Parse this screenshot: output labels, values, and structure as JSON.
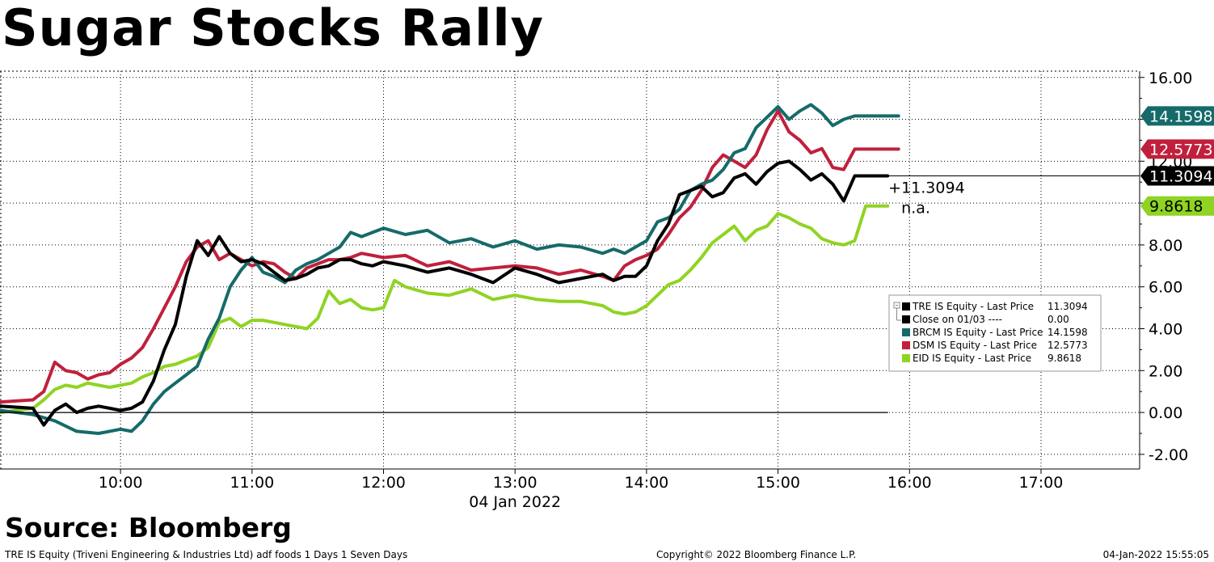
{
  "header": {
    "title": "Sugar Stocks Rally"
  },
  "source": {
    "label": "Source:  Bloomberg"
  },
  "footer": {
    "left": "TRE IS Equity (Triveni Engineering & Industries Ltd) adf foods 1 Days 1 Seven Days",
    "center": "Copyright© 2022 Bloomberg Finance L.P.",
    "right": "04-Jan-2022 15:55:05"
  },
  "chart_data": {
    "type": "line",
    "x_ticks": [
      "10:00",
      "11:00",
      "12:00",
      "13:00",
      "14:00",
      "15:00",
      "16:00",
      "17:00"
    ],
    "x_date_label": "04 Jan 2022",
    "xlim": [
      "09:05",
      "17:45"
    ],
    "y_ticks": [
      "16.00",
      "14.00",
      "12.00",
      "10.00",
      "8.00",
      "6.00",
      "4.00",
      "2.00",
      "0.00",
      "-2.00"
    ],
    "ylim": [
      -2.7,
      16.3
    ],
    "grid": true,
    "axis_side": "right",
    "legend_position": "right-middle",
    "series": [
      {
        "name": "TRE IS Equity - Last Price",
        "legend_value": "11.3094",
        "color": "#000000",
        "tag": "11.3094",
        "points": [
          [
            "09:05",
            0.3
          ],
          [
            "09:20",
            0.2
          ],
          [
            "09:25",
            -0.6
          ],
          [
            "09:30",
            0.1
          ],
          [
            "09:35",
            0.4
          ],
          [
            "09:40",
            0.0
          ],
          [
            "09:45",
            0.2
          ],
          [
            "09:50",
            0.3
          ],
          [
            "09:55",
            0.2
          ],
          [
            "10:00",
            0.1
          ],
          [
            "10:05",
            0.2
          ],
          [
            "10:10",
            0.5
          ],
          [
            "10:15",
            1.5
          ],
          [
            "10:20",
            3.0
          ],
          [
            "10:25",
            4.2
          ],
          [
            "10:30",
            6.5
          ],
          [
            "10:35",
            8.2
          ],
          [
            "10:40",
            7.5
          ],
          [
            "10:45",
            8.4
          ],
          [
            "10:50",
            7.6
          ],
          [
            "10:55",
            7.2
          ],
          [
            "11:00",
            7.3
          ],
          [
            "11:05",
            7.1
          ],
          [
            "11:10",
            6.7
          ],
          [
            "11:15",
            6.3
          ],
          [
            "11:20",
            6.4
          ],
          [
            "11:25",
            6.6
          ],
          [
            "11:30",
            6.9
          ],
          [
            "11:35",
            7.0
          ],
          [
            "11:40",
            7.3
          ],
          [
            "11:45",
            7.3
          ],
          [
            "11:50",
            7.1
          ],
          [
            "11:55",
            7.0
          ],
          [
            "12:00",
            7.2
          ],
          [
            "12:10",
            7.0
          ],
          [
            "12:20",
            6.7
          ],
          [
            "12:30",
            6.9
          ],
          [
            "12:40",
            6.6
          ],
          [
            "12:50",
            6.2
          ],
          [
            "13:00",
            6.9
          ],
          [
            "13:10",
            6.6
          ],
          [
            "13:20",
            6.2
          ],
          [
            "13:30",
            6.4
          ],
          [
            "13:40",
            6.6
          ],
          [
            "13:45",
            6.3
          ],
          [
            "13:50",
            6.5
          ],
          [
            "13:55",
            6.5
          ],
          [
            "14:00",
            7.0
          ],
          [
            "14:05",
            8.2
          ],
          [
            "14:10",
            9.0
          ],
          [
            "14:15",
            10.4
          ],
          [
            "14:20",
            10.6
          ],
          [
            "14:25",
            10.8
          ],
          [
            "14:30",
            10.3
          ],
          [
            "14:35",
            10.5
          ],
          [
            "14:40",
            11.2
          ],
          [
            "14:45",
            11.4
          ],
          [
            "14:50",
            10.9
          ],
          [
            "14:55",
            11.5
          ],
          [
            "15:00",
            11.9
          ],
          [
            "15:05",
            12.0
          ],
          [
            "15:10",
            11.6
          ],
          [
            "15:15",
            11.1
          ],
          [
            "15:20",
            11.4
          ],
          [
            "15:25",
            10.9
          ],
          [
            "15:30",
            10.1
          ],
          [
            "15:35",
            11.3
          ],
          [
            "15:50",
            11.3
          ]
        ]
      },
      {
        "name": "Close on 01/03 ----",
        "legend_value": "0.00",
        "color": "#000000",
        "points": [
          [
            "09:05",
            0.0
          ],
          [
            "15:50",
            0.0
          ]
        ]
      },
      {
        "name": "BRCM IS Equity - Last Price",
        "legend_value": "14.1598",
        "color": "#166a6a",
        "tag": "14.1598",
        "points": [
          [
            "09:05",
            0.1
          ],
          [
            "09:20",
            -0.1
          ],
          [
            "09:30",
            -0.4
          ],
          [
            "09:40",
            -0.9
          ],
          [
            "09:50",
            -1.0
          ],
          [
            "10:00",
            -0.8
          ],
          [
            "10:05",
            -0.9
          ],
          [
            "10:10",
            -0.4
          ],
          [
            "10:15",
            0.4
          ],
          [
            "10:20",
            1.0
          ],
          [
            "10:25",
            1.4
          ],
          [
            "10:30",
            1.8
          ],
          [
            "10:35",
            2.2
          ],
          [
            "10:40",
            3.5
          ],
          [
            "10:45",
            4.5
          ],
          [
            "10:50",
            6.0
          ],
          [
            "10:55",
            6.8
          ],
          [
            "11:00",
            7.4
          ],
          [
            "11:05",
            6.7
          ],
          [
            "11:10",
            6.5
          ],
          [
            "11:15",
            6.2
          ],
          [
            "11:20",
            6.8
          ],
          [
            "11:25",
            7.1
          ],
          [
            "11:30",
            7.3
          ],
          [
            "11:35",
            7.6
          ],
          [
            "11:40",
            7.9
          ],
          [
            "11:45",
            8.6
          ],
          [
            "11:50",
            8.4
          ],
          [
            "11:55",
            8.6
          ],
          [
            "12:00",
            8.8
          ],
          [
            "12:10",
            8.5
          ],
          [
            "12:20",
            8.7
          ],
          [
            "12:30",
            8.1
          ],
          [
            "12:40",
            8.3
          ],
          [
            "12:50",
            7.9
          ],
          [
            "13:00",
            8.2
          ],
          [
            "13:10",
            7.8
          ],
          [
            "13:20",
            8.0
          ],
          [
            "13:30",
            7.9
          ],
          [
            "13:40",
            7.6
          ],
          [
            "13:45",
            7.8
          ],
          [
            "13:50",
            7.6
          ],
          [
            "13:55",
            7.9
          ],
          [
            "14:00",
            8.2
          ],
          [
            "14:05",
            9.1
          ],
          [
            "14:10",
            9.3
          ],
          [
            "14:15",
            9.7
          ],
          [
            "14:20",
            10.6
          ],
          [
            "14:25",
            10.9
          ],
          [
            "14:30",
            11.1
          ],
          [
            "14:35",
            11.6
          ],
          [
            "14:40",
            12.4
          ],
          [
            "14:45",
            12.6
          ],
          [
            "14:50",
            13.6
          ],
          [
            "14:55",
            14.1
          ],
          [
            "15:00",
            14.6
          ],
          [
            "15:05",
            14.0
          ],
          [
            "15:10",
            14.4
          ],
          [
            "15:15",
            14.7
          ],
          [
            "15:20",
            14.3
          ],
          [
            "15:25",
            13.7
          ],
          [
            "15:30",
            14.0
          ],
          [
            "15:35",
            14.1598
          ],
          [
            "15:55",
            14.1598
          ]
        ]
      },
      {
        "name": "DSM IS Equity - Last Price",
        "legend_value": "12.5773",
        "color": "#c0203c",
        "tag": "12.5773",
        "points": [
          [
            "09:05",
            0.5
          ],
          [
            "09:20",
            0.6
          ],
          [
            "09:25",
            1.0
          ],
          [
            "09:30",
            2.4
          ],
          [
            "09:35",
            2.0
          ],
          [
            "09:40",
            1.9
          ],
          [
            "09:45",
            1.6
          ],
          [
            "09:50",
            1.8
          ],
          [
            "09:55",
            1.9
          ],
          [
            "10:00",
            2.3
          ],
          [
            "10:05",
            2.6
          ],
          [
            "10:10",
            3.1
          ],
          [
            "10:15",
            4.0
          ],
          [
            "10:20",
            5.0
          ],
          [
            "10:25",
            6.0
          ],
          [
            "10:30",
            7.2
          ],
          [
            "10:35",
            7.9
          ],
          [
            "10:40",
            8.2
          ],
          [
            "10:45",
            7.3
          ],
          [
            "10:50",
            7.6
          ],
          [
            "10:55",
            7.3
          ],
          [
            "11:00",
            7.0
          ],
          [
            "11:05",
            7.2
          ],
          [
            "11:10",
            7.1
          ],
          [
            "11:15",
            6.7
          ],
          [
            "11:20",
            6.4
          ],
          [
            "11:25",
            6.9
          ],
          [
            "11:30",
            7.1
          ],
          [
            "11:35",
            7.3
          ],
          [
            "11:40",
            7.3
          ],
          [
            "11:45",
            7.4
          ],
          [
            "11:50",
            7.6
          ],
          [
            "11:55",
            7.5
          ],
          [
            "12:00",
            7.4
          ],
          [
            "12:10",
            7.5
          ],
          [
            "12:20",
            7.0
          ],
          [
            "12:30",
            7.2
          ],
          [
            "12:40",
            6.8
          ],
          [
            "12:50",
            6.9
          ],
          [
            "13:00",
            7.0
          ],
          [
            "13:10",
            6.9
          ],
          [
            "13:20",
            6.6
          ],
          [
            "13:30",
            6.8
          ],
          [
            "13:40",
            6.5
          ],
          [
            "13:45",
            6.3
          ],
          [
            "13:50",
            7.0
          ],
          [
            "13:55",
            7.3
          ],
          [
            "14:00",
            7.5
          ],
          [
            "14:05",
            7.8
          ],
          [
            "14:10",
            8.5
          ],
          [
            "14:15",
            9.3
          ],
          [
            "14:20",
            9.8
          ],
          [
            "14:25",
            10.6
          ],
          [
            "14:30",
            11.7
          ],
          [
            "14:35",
            12.3
          ],
          [
            "14:40",
            12.0
          ],
          [
            "14:45",
            11.7
          ],
          [
            "14:50",
            12.3
          ],
          [
            "14:55",
            13.5
          ],
          [
            "15:00",
            14.4
          ],
          [
            "15:05",
            13.4
          ],
          [
            "15:10",
            13.0
          ],
          [
            "15:15",
            12.4
          ],
          [
            "15:20",
            12.6
          ],
          [
            "15:25",
            11.7
          ],
          [
            "15:30",
            11.6
          ],
          [
            "15:35",
            12.5773
          ],
          [
            "15:55",
            12.5773
          ]
        ]
      },
      {
        "name": "EID IS Equity - Last Price",
        "legend_value": "9.8618",
        "color": "#8fd422",
        "tag": "9.8618",
        "points": [
          [
            "09:05",
            0.0
          ],
          [
            "09:20",
            0.2
          ],
          [
            "09:25",
            0.6
          ],
          [
            "09:30",
            1.1
          ],
          [
            "09:35",
            1.3
          ],
          [
            "09:40",
            1.2
          ],
          [
            "09:45",
            1.4
          ],
          [
            "09:50",
            1.3
          ],
          [
            "09:55",
            1.2
          ],
          [
            "10:00",
            1.3
          ],
          [
            "10:05",
            1.4
          ],
          [
            "10:10",
            1.7
          ],
          [
            "10:15",
            1.9
          ],
          [
            "10:20",
            2.2
          ],
          [
            "10:25",
            2.3
          ],
          [
            "10:30",
            2.5
          ],
          [
            "10:35",
            2.7
          ],
          [
            "10:40",
            3.1
          ],
          [
            "10:45",
            4.3
          ],
          [
            "10:50",
            4.5
          ],
          [
            "10:55",
            4.1
          ],
          [
            "11:00",
            4.4
          ],
          [
            "11:05",
            4.4
          ],
          [
            "11:10",
            4.3
          ],
          [
            "11:15",
            4.2
          ],
          [
            "11:20",
            4.1
          ],
          [
            "11:25",
            4.0
          ],
          [
            "11:30",
            4.5
          ],
          [
            "11:35",
            5.8
          ],
          [
            "11:40",
            5.2
          ],
          [
            "11:45",
            5.4
          ],
          [
            "11:50",
            5.0
          ],
          [
            "11:55",
            4.9
          ],
          [
            "12:00",
            5.0
          ],
          [
            "12:05",
            6.3
          ],
          [
            "12:10",
            6.0
          ],
          [
            "12:20",
            5.7
          ],
          [
            "12:30",
            5.6
          ],
          [
            "12:40",
            5.9
          ],
          [
            "12:50",
            5.4
          ],
          [
            "13:00",
            5.6
          ],
          [
            "13:10",
            5.4
          ],
          [
            "13:20",
            5.3
          ],
          [
            "13:30",
            5.3
          ],
          [
            "13:40",
            5.1
          ],
          [
            "13:45",
            4.8
          ],
          [
            "13:50",
            4.7
          ],
          [
            "13:55",
            4.8
          ],
          [
            "14:00",
            5.1
          ],
          [
            "14:05",
            5.6
          ],
          [
            "14:10",
            6.1
          ],
          [
            "14:15",
            6.3
          ],
          [
            "14:20",
            6.8
          ],
          [
            "14:25",
            7.4
          ],
          [
            "14:30",
            8.1
          ],
          [
            "14:35",
            8.5
          ],
          [
            "14:40",
            8.9
          ],
          [
            "14:45",
            8.2
          ],
          [
            "14:50",
            8.7
          ],
          [
            "14:55",
            8.9
          ],
          [
            "15:00",
            9.5
          ],
          [
            "15:05",
            9.3
          ],
          [
            "15:10",
            9.0
          ],
          [
            "15:15",
            8.8
          ],
          [
            "15:20",
            8.3
          ],
          [
            "15:25",
            8.1
          ],
          [
            "15:30",
            8.0
          ],
          [
            "15:35",
            8.2
          ],
          [
            "15:40",
            9.8618
          ],
          [
            "15:50",
            9.8618
          ]
        ]
      }
    ],
    "annotations": [
      {
        "text": "+11.3094"
      },
      {
        "text": "n.a."
      }
    ]
  }
}
